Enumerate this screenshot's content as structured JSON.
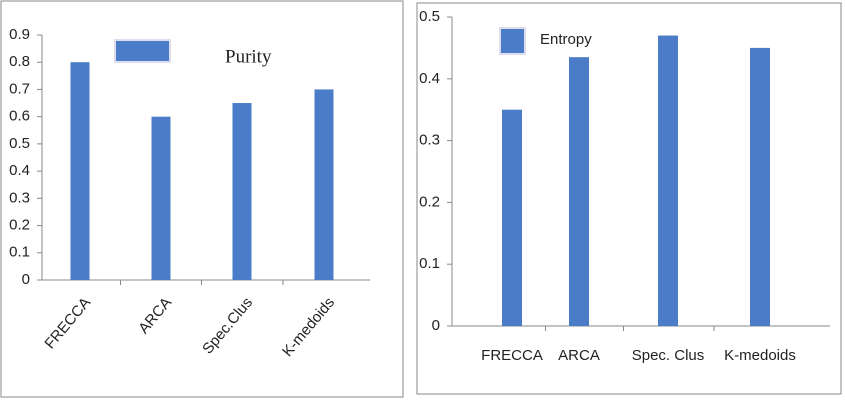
{
  "chart_data": [
    {
      "type": "bar",
      "categories": [
        "FRECCA",
        "ARCA",
        "Spec.Clus",
        "K-medoids"
      ],
      "series": [
        {
          "name": "Purity",
          "color": "#4a7cc7",
          "values": [
            0.8,
            0.6,
            0.65,
            0.7
          ]
        }
      ],
      "ylim": [
        0,
        0.9
      ],
      "yticks": [
        0,
        0.1,
        0.2,
        0.3,
        0.4,
        0.5,
        0.6,
        0.7,
        0.8,
        0.9
      ],
      "legend": "top"
    },
    {
      "type": "bar",
      "categories": [
        "FRECCA",
        "ARCA",
        "Spec. Clus",
        "K-medoids"
      ],
      "series": [
        {
          "name": "Entropy",
          "color": "#4a7cc7",
          "values": [
            0.35,
            0.435,
            0.47,
            0.45
          ]
        }
      ],
      "ylim": [
        0,
        0.5
      ],
      "yticks": [
        0,
        0.1,
        0.2,
        0.3,
        0.4,
        0.5
      ],
      "legend": "top"
    }
  ]
}
